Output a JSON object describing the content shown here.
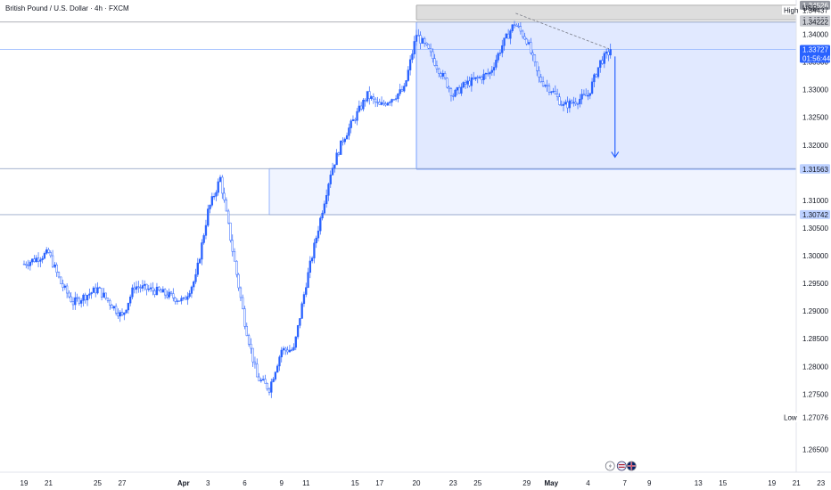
{
  "header": {
    "title": "British Pound / U.S. Dollar · 4h · FXCM",
    "currency": "USD"
  },
  "chart_data": {
    "type": "candlestick",
    "symbol": "British Pound / U.S. Dollar",
    "timeframe": "4h",
    "source": "FXCM",
    "ylim": [
      1.2625,
      1.3462
    ],
    "y_ticks": [
      "1.34000",
      "1.33500",
      "1.33000",
      "1.32500",
      "1.32000",
      "1.31000",
      "1.30500",
      "1.30000",
      "1.29500",
      "1.29000",
      "1.28500",
      "1.28000",
      "1.27500",
      "1.26500"
    ],
    "x_ticks": [
      {
        "label": "19",
        "day": 0
      },
      {
        "label": "21",
        "day": 2
      },
      {
        "label": "25",
        "day": 6
      },
      {
        "label": "27",
        "day": 8
      },
      {
        "label": "Apr",
        "day": 13,
        "bold": true
      },
      {
        "label": "3",
        "day": 15
      },
      {
        "label": "6",
        "day": 18
      },
      {
        "label": "9",
        "day": 21
      },
      {
        "label": "11",
        "day": 23
      },
      {
        "label": "15",
        "day": 27
      },
      {
        "label": "17",
        "day": 29
      },
      {
        "label": "20",
        "day": 32
      },
      {
        "label": "23",
        "day": 35
      },
      {
        "label": "25",
        "day": 37
      },
      {
        "label": "29",
        "day": 41
      },
      {
        "label": "May",
        "day": 43,
        "bold": true
      },
      {
        "label": "4",
        "day": 46
      },
      {
        "label": "7",
        "day": 49
      },
      {
        "label": "9",
        "day": 51
      },
      {
        "label": "13",
        "day": 55
      },
      {
        "label": "15",
        "day": 57
      },
      {
        "label": "19",
        "day": 61
      },
      {
        "label": "21",
        "day": 63
      },
      {
        "label": "23",
        "day": 65
      }
    ],
    "anchors": [
      {
        "day": 0,
        "price": 1.2985
      },
      {
        "day": 2,
        "price": 1.3005
      },
      {
        "day": 3,
        "price": 1.295
      },
      {
        "day": 4,
        "price": 1.2915
      },
      {
        "day": 6,
        "price": 1.294
      },
      {
        "day": 8,
        "price": 1.289
      },
      {
        "day": 9,
        "price": 1.2945
      },
      {
        "day": 11,
        "price": 1.2935
      },
      {
        "day": 13,
        "price": 1.2918
      },
      {
        "day": 14,
        "price": 1.296
      },
      {
        "day": 15,
        "price": 1.308
      },
      {
        "day": 16,
        "price": 1.314
      },
      {
        "day": 17,
        "price": 1.301
      },
      {
        "day": 18,
        "price": 1.288
      },
      {
        "day": 19,
        "price": 1.278
      },
      {
        "day": 20,
        "price": 1.276
      },
      {
        "day": 21,
        "price": 1.283
      },
      {
        "day": 22,
        "price": 1.283
      },
      {
        "day": 23,
        "price": 1.295
      },
      {
        "day": 24,
        "price": 1.305
      },
      {
        "day": 25,
        "price": 1.315
      },
      {
        "day": 26,
        "price": 1.321
      },
      {
        "day": 27,
        "price": 1.325
      },
      {
        "day": 28,
        "price": 1.329
      },
      {
        "day": 29,
        "price": 1.327
      },
      {
        "day": 31,
        "price": 1.33
      },
      {
        "day": 32,
        "price": 1.34
      },
      {
        "day": 33,
        "price": 1.337
      },
      {
        "day": 34,
        "price": 1.333
      },
      {
        "day": 35,
        "price": 1.329
      },
      {
        "day": 36,
        "price": 1.331
      },
      {
        "day": 37,
        "price": 1.332
      },
      {
        "day": 38,
        "price": 1.333
      },
      {
        "day": 39,
        "price": 1.338
      },
      {
        "day": 40,
        "price": 1.342
      },
      {
        "day": 41,
        "price": 1.339
      },
      {
        "day": 42,
        "price": 1.332
      },
      {
        "day": 43,
        "price": 1.33
      },
      {
        "day": 44,
        "price": 1.327
      },
      {
        "day": 45,
        "price": 1.328
      },
      {
        "day": 46,
        "price": 1.329
      },
      {
        "day": 47,
        "price": 1.335
      },
      {
        "day": 47.9,
        "price": 1.3372
      }
    ],
    "candles_per_day": 6,
    "zones": [
      {
        "name": "resistance-zone",
        "from_day": 32,
        "to_day": 65,
        "top": 1.34526,
        "bottom": 1.34262,
        "color": "#bdbdbd"
      },
      {
        "name": "projection-zone",
        "from_day": 32,
        "to_day": 65,
        "top": 1.34222,
        "bottom": 1.31563,
        "color": "#2962ff"
      },
      {
        "name": "support-zone",
        "from_day": 20,
        "to_day": 65,
        "top": 1.31573,
        "bottom": 1.30742,
        "color": "#2962ff"
      }
    ],
    "price_labels": [
      {
        "value": "1.34526",
        "price": 1.34526,
        "style": "dark"
      },
      {
        "value": "1.34437",
        "price": 1.34437,
        "style": "plain",
        "tag": "High"
      },
      {
        "value": "1.34262",
        "price": 1.34262,
        "style": "grey"
      },
      {
        "value": "1.34222",
        "price": 1.34222,
        "style": "grey"
      },
      {
        "value": "1.33727",
        "price": 1.33727,
        "style": "blue",
        "countdown": "01:56:44"
      },
      {
        "value": "1.31573",
        "price": 1.31573,
        "style": "lightblue"
      },
      {
        "value": "1.31563",
        "price": 1.31563,
        "style": "lightblue"
      },
      {
        "value": "1.30742",
        "price": 1.30742,
        "style": "lightblue"
      },
      {
        "value": "1.27076",
        "price": 1.27076,
        "style": "plain",
        "tag": "Low"
      }
    ],
    "trend_line": {
      "from_day": 40.1,
      "from_price": 1.3438,
      "to_day": 47.7,
      "to_price": 1.3374
    },
    "arrow": {
      "day": 48.2,
      "from_price": 1.336,
      "to_price": 1.3178
    },
    "colors": {
      "up": "#2962ff",
      "down": "#2962ff",
      "axis_text": "#131722",
      "line": "#787b86"
    },
    "event_icons": [
      "lightning-icon",
      "flag-us-icon",
      "flag-gb-icon"
    ]
  }
}
